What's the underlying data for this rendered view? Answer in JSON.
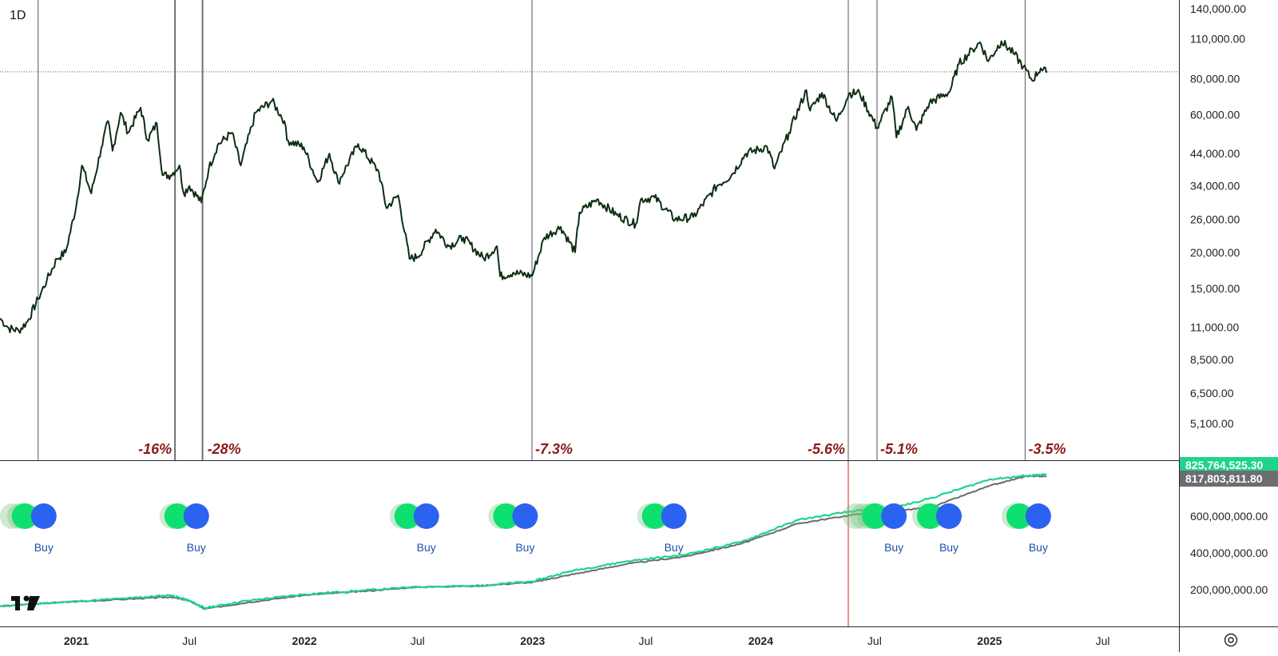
{
  "timeframe": "1D",
  "colors": {
    "price_line": "#0d2e12",
    "vline": "#6f6f78",
    "drawdown_text": "#8b1a1a",
    "buy_blue": "#2c62f0",
    "buy_green": "#0ee06f",
    "buy_faded": "#6fc377",
    "buy_text": "#1f4fa8",
    "equity_green": "#1fd48a",
    "equity_gray": "#6b6b6b",
    "equity_red": "#e05252",
    "red_line": "#e06b6b",
    "badge_green": "#1fd48a",
    "badge_gray": "#6b6d73"
  },
  "chart_data": [
    {
      "type": "line",
      "title": "",
      "yscale": "log",
      "ylim": [
        3800,
        150000
      ],
      "xlim": [
        "2020-09-01",
        "2025-10-31"
      ],
      "y_ticks": [
        "140,000.00",
        "110,000.00",
        "80,000.00",
        "60,000.00",
        "44,000.00",
        "34,000.00",
        "26,000.00",
        "20,000.00",
        "15,000.00",
        "11,000.00",
        "8,500.00",
        "6,500.00",
        "5,100.00"
      ],
      "current_price_line": 84500,
      "series": [
        {
          "points": [
            [
              "2020-09-01",
              11800
            ],
            [
              "2020-09-15",
              10900
            ],
            [
              "2020-10-01",
              10700
            ],
            [
              "2020-10-15",
              11500
            ],
            [
              "2020-11-01",
              13800
            ],
            [
              "2020-11-15",
              16000
            ],
            [
              "2020-12-01",
              19000
            ],
            [
              "2020-12-15",
              20000
            ],
            [
              "2021-01-01",
              29000
            ],
            [
              "2021-01-10",
              40000
            ],
            [
              "2021-01-25",
              32000
            ],
            [
              "2021-02-10",
              46000
            ],
            [
              "2021-02-21",
              57000
            ],
            [
              "2021-02-28",
              45000
            ],
            [
              "2021-03-13",
              61000
            ],
            [
              "2021-03-25",
              52000
            ],
            [
              "2021-04-14",
              63500
            ],
            [
              "2021-04-25",
              49000
            ],
            [
              "2021-05-10",
              56000
            ],
            [
              "2021-05-19",
              37000
            ],
            [
              "2021-06-01",
              37000
            ],
            [
              "2021-06-15",
              40000
            ],
            [
              "2021-06-22",
              32000
            ],
            [
              "2021-07-01",
              34000
            ],
            [
              "2021-07-20",
              29800
            ],
            [
              "2021-08-01",
              39000
            ],
            [
              "2021-08-15",
              47000
            ],
            [
              "2021-09-07",
              52000
            ],
            [
              "2021-09-21",
              40000
            ],
            [
              "2021-10-15",
              61000
            ],
            [
              "2021-11-10",
              67000
            ],
            [
              "2021-11-30",
              57000
            ],
            [
              "2021-12-04",
              49000
            ],
            [
              "2021-12-31",
              46300
            ],
            [
              "2022-01-22",
              35000
            ],
            [
              "2022-02-10",
              44000
            ],
            [
              "2022-02-24",
              35000
            ],
            [
              "2022-03-28",
              47500
            ],
            [
              "2022-04-30",
              38000
            ],
            [
              "2022-05-12",
              28500
            ],
            [
              "2022-05-31",
              31500
            ],
            [
              "2022-06-18",
              19000
            ],
            [
              "2022-07-01",
              19300
            ],
            [
              "2022-07-30",
              24000
            ],
            [
              "2022-08-20",
              21000
            ],
            [
              "2022-09-12",
              22500
            ],
            [
              "2022-10-15",
              19000
            ],
            [
              "2022-11-05",
              21000
            ],
            [
              "2022-11-10",
              16500
            ],
            [
              "2022-12-01",
              17000
            ],
            [
              "2022-12-31",
              16550
            ],
            [
              "2023-01-20",
              22500
            ],
            [
              "2023-02-15",
              24500
            ],
            [
              "2023-03-10",
              20000
            ],
            [
              "2023-03-17",
              27500
            ],
            [
              "2023-04-14",
              30500
            ],
            [
              "2023-05-15",
              27000
            ],
            [
              "2023-06-15",
              25000
            ],
            [
              "2023-06-23",
              30500
            ],
            [
              "2023-07-15",
              31000
            ],
            [
              "2023-08-17",
              26000
            ],
            [
              "2023-09-15",
              26500
            ],
            [
              "2023-10-23",
              34000
            ],
            [
              "2023-11-15",
              37000
            ],
            [
              "2023-12-08",
              44000
            ],
            [
              "2024-01-11",
              46500
            ],
            [
              "2024-01-23",
              39000
            ],
            [
              "2024-02-15",
              52000
            ],
            [
              "2024-03-14",
              73000
            ],
            [
              "2024-03-20",
              62000
            ],
            [
              "2024-04-08",
              71500
            ],
            [
              "2024-05-01",
              57000
            ],
            [
              "2024-05-21",
              71000
            ],
            [
              "2024-06-07",
              71500
            ],
            [
              "2024-07-05",
              54000
            ],
            [
              "2024-07-29",
              69000
            ],
            [
              "2024-08-05",
              50000
            ],
            [
              "2024-08-24",
              64000
            ],
            [
              "2024-09-06",
              53000
            ],
            [
              "2024-09-27",
              66000
            ],
            [
              "2024-10-29",
              72000
            ],
            [
              "2024-11-13",
              90000
            ],
            [
              "2024-12-05",
              101000
            ],
            [
              "2024-12-17",
              107000
            ],
            [
              "2024-12-30",
              92000
            ],
            [
              "2025-01-20",
              108000
            ],
            [
              "2025-02-10",
              97000
            ],
            [
              "2025-02-24",
              88000
            ],
            [
              "2025-03-10",
              79000
            ],
            [
              "2025-03-24",
              87000
            ],
            [
              "2025-04-02",
              84000
            ]
          ]
        }
      ],
      "vertical_markers": [
        {
          "date": "2020-11-01",
          "label": ""
        },
        {
          "date": "2021-06-08",
          "label": "-16%"
        },
        {
          "date": "2021-07-22",
          "label": "-28%"
        },
        {
          "date": "2022-12-31",
          "label": "-7.3%"
        },
        {
          "date": "2024-05-20",
          "label": "-5.6%"
        },
        {
          "date": "2024-07-05",
          "label": "-5.1%"
        },
        {
          "date": "2025-02-27",
          "label": "-3.5%"
        }
      ]
    },
    {
      "type": "line",
      "title": "",
      "ylim": [
        0,
        900000000
      ],
      "y_ticks": [
        "600,000,000.00",
        "400,000,000.00",
        "200,000,000.00"
      ],
      "badges": [
        {
          "label": "825,764,525.30",
          "color": "green"
        },
        {
          "label": "817,803,811.80",
          "color": "gray"
        }
      ],
      "series": [
        {
          "color_key": "equity_gray",
          "points": [
            [
              "2020-09-01",
              110000000
            ],
            [
              "2020-12-01",
              130000000
            ],
            [
              "2021-04-01",
              150000000
            ],
            [
              "2021-06-01",
              160000000
            ],
            [
              "2021-07-01",
              140000000
            ],
            [
              "2021-07-25",
              95000000
            ],
            [
              "2021-10-01",
              130000000
            ],
            [
              "2022-01-01",
              170000000
            ],
            [
              "2022-04-01",
              190000000
            ],
            [
              "2022-07-01",
              215000000
            ],
            [
              "2022-10-01",
              220000000
            ],
            [
              "2023-01-01",
              240000000
            ],
            [
              "2023-03-01",
              280000000
            ],
            [
              "2023-06-01",
              340000000
            ],
            [
              "2023-09-01",
              380000000
            ],
            [
              "2023-12-01",
              450000000
            ],
            [
              "2024-03-01",
              560000000
            ],
            [
              "2024-06-01",
              610000000
            ],
            [
              "2024-07-15",
              620000000
            ],
            [
              "2024-10-01",
              650000000
            ],
            [
              "2025-01-01",
              765000000
            ],
            [
              "2025-03-01",
              817803811.8
            ],
            [
              "2025-04-02",
              817803811.8
            ]
          ]
        },
        {
          "color_key": "equity_green",
          "points": [
            [
              "2020-09-01",
              110000000
            ],
            [
              "2020-12-01",
              130000000
            ],
            [
              "2021-04-01",
              155000000
            ],
            [
              "2021-06-01",
              170000000
            ],
            [
              "2021-07-01",
              140000000
            ],
            [
              "2021-07-25",
              100000000
            ],
            [
              "2021-10-01",
              140000000
            ],
            [
              "2022-01-01",
              175000000
            ],
            [
              "2022-04-01",
              195000000
            ],
            [
              "2022-07-01",
              215000000
            ],
            [
              "2022-10-01",
              220000000
            ],
            [
              "2023-01-01",
              245000000
            ],
            [
              "2023-03-01",
              300000000
            ],
            [
              "2023-06-01",
              355000000
            ],
            [
              "2023-09-01",
              390000000
            ],
            [
              "2023-12-01",
              460000000
            ],
            [
              "2024-03-01",
              580000000
            ],
            [
              "2024-06-01",
              630000000
            ],
            [
              "2024-07-15",
              630000000
            ],
            [
              "2024-10-01",
              700000000
            ],
            [
              "2025-01-01",
              800000000
            ],
            [
              "2025-03-01",
              820000000
            ],
            [
              "2025-04-02",
              825764525.3
            ]
          ]
        }
      ],
      "red_vertical_marker": "2024-05-20",
      "buy_signals": [
        {
          "date": "2020-11-10",
          "label": "Buy"
        },
        {
          "date": "2021-07-12",
          "label": "Buy"
        },
        {
          "date": "2022-07-15",
          "label": "Buy"
        },
        {
          "date": "2022-12-20",
          "label": "Buy"
        },
        {
          "date": "2023-08-15",
          "label": "Buy"
        },
        {
          "date": "2024-08-01",
          "label": "Buy"
        },
        {
          "date": "2024-10-28",
          "label": "Buy"
        },
        {
          "date": "2025-03-20",
          "label": "Buy"
        }
      ]
    }
  ],
  "x_axis": {
    "labels": [
      {
        "date": "2021-01-01",
        "text": "2021",
        "bold": true
      },
      {
        "date": "2021-07-01",
        "text": "Jul",
        "bold": false
      },
      {
        "date": "2022-01-01",
        "text": "2022",
        "bold": true
      },
      {
        "date": "2022-07-01",
        "text": "Jul",
        "bold": false
      },
      {
        "date": "2023-01-01",
        "text": "2023",
        "bold": true
      },
      {
        "date": "2023-07-01",
        "text": "Jul",
        "bold": false
      },
      {
        "date": "2024-01-01",
        "text": "2024",
        "bold": true
      },
      {
        "date": "2024-07-01",
        "text": "Jul",
        "bold": false
      },
      {
        "date": "2025-01-01",
        "text": "2025",
        "bold": true
      },
      {
        "date": "2025-07-01",
        "text": "Jul",
        "bold": false
      }
    ]
  },
  "logo_icon": "tradingview-logo-icon",
  "settings_icon": "settings-icon"
}
